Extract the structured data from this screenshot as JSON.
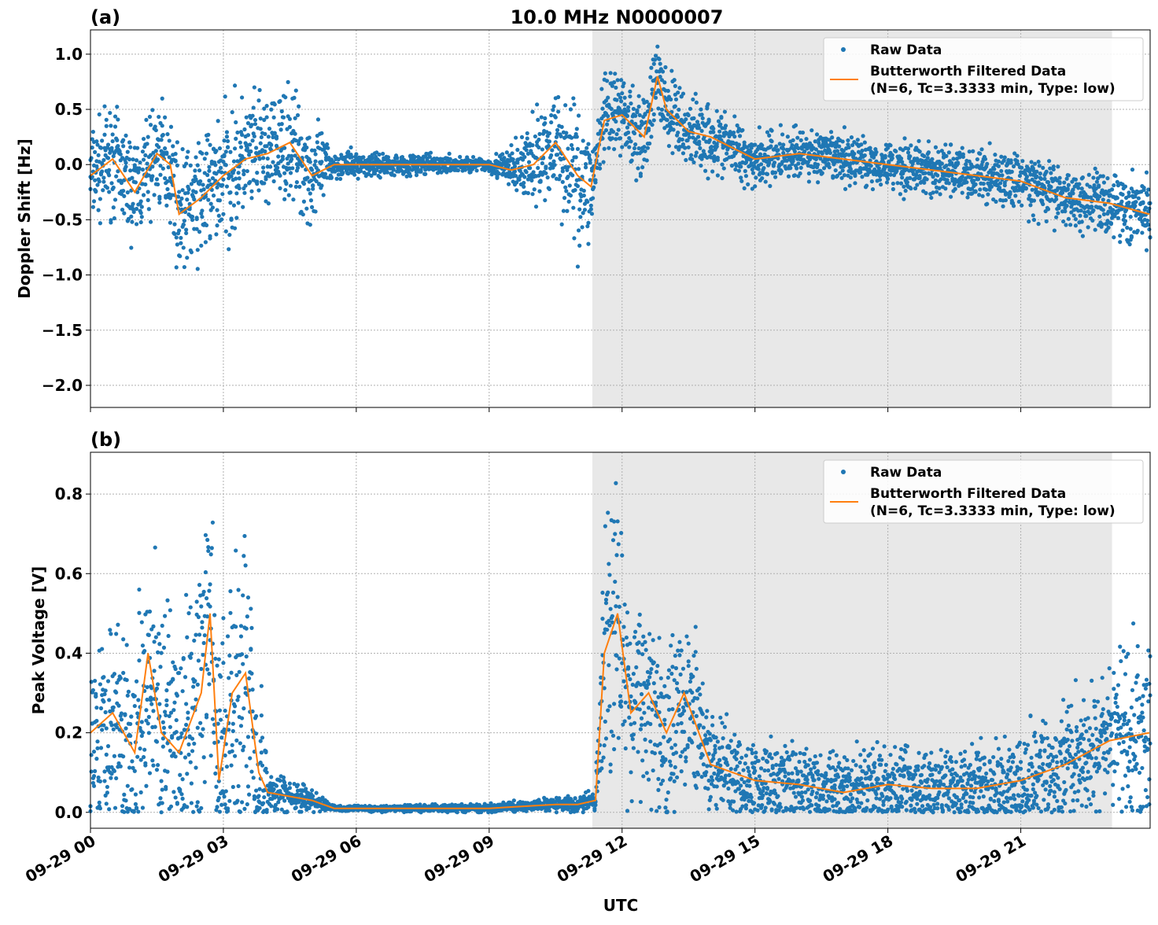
{
  "title": "10.0 MHz N0000007",
  "xlabel": "UTC",
  "x_tick_labels": [
    "09-29 00",
    "09-29 03",
    "09-29 06",
    "09-29 09",
    "09-29 12",
    "09-29 15",
    "09-29 18",
    "09-29 21"
  ],
  "colors": {
    "raw": "#1f77b4",
    "filtered": "#ff7f0e",
    "shade": "#e8e8e8"
  },
  "legend": {
    "raw": "Raw Data",
    "filtered_line1": "Butterworth Filtered Data",
    "filtered_line2": "(N=6, Tc=3.3333 min, Type: low)",
    "placement": "upper-right"
  },
  "chart_data": [
    {
      "type": "scatter+line",
      "panel_label": "(a)",
      "ylabel": "Doppler Shift [Hz]",
      "xlim_hours": [
        0,
        23.92
      ],
      "ylim": [
        -2.2,
        1.22
      ],
      "yticks": [
        1.0,
        0.5,
        0.0,
        -0.5,
        -1.0,
        -1.5,
        -2.0
      ],
      "ytick_labels": [
        "1.0",
        "0.5",
        "0.0",
        "−0.5",
        "−1.0",
        "−1.5",
        "−2.0"
      ],
      "grid": true,
      "shaded_span_hours": [
        11.33,
        23.06
      ],
      "filtered": [
        [
          0,
          -0.1
        ],
        [
          0.5,
          0.05
        ],
        [
          1,
          -0.25
        ],
        [
          1.5,
          0.1
        ],
        [
          1.8,
          0.0
        ],
        [
          2,
          -0.45
        ],
        [
          2.5,
          -0.3
        ],
        [
          3,
          -0.1
        ],
        [
          3.5,
          0.05
        ],
        [
          4,
          0.1
        ],
        [
          4.5,
          0.2
        ],
        [
          5,
          -0.1
        ],
        [
          5.5,
          0.0
        ],
        [
          6,
          0.0
        ],
        [
          7,
          0.0
        ],
        [
          8,
          0.0
        ],
        [
          9,
          0.0
        ],
        [
          9.5,
          -0.05
        ],
        [
          10,
          0.0
        ],
        [
          10.5,
          0.2
        ],
        [
          11,
          -0.1
        ],
        [
          11.3,
          -0.2
        ],
        [
          11.6,
          0.4
        ],
        [
          12,
          0.45
        ],
        [
          12.5,
          0.25
        ],
        [
          12.8,
          0.8
        ],
        [
          13,
          0.5
        ],
        [
          13.5,
          0.3
        ],
        [
          14,
          0.25
        ],
        [
          14.5,
          0.15
        ],
        [
          15,
          0.05
        ],
        [
          16,
          0.1
        ],
        [
          17,
          0.05
        ],
        [
          18,
          0.0
        ],
        [
          19,
          -0.05
        ],
        [
          20,
          -0.1
        ],
        [
          21,
          -0.15
        ],
        [
          22,
          -0.3
        ],
        [
          23,
          -0.35
        ],
        [
          23.9,
          -0.45
        ]
      ],
      "raw_spread": [
        [
          0,
          0.35
        ],
        [
          2,
          0.4
        ],
        [
          3,
          0.5
        ],
        [
          4,
          0.4
        ],
        [
          5,
          0.4
        ],
        [
          5.5,
          0.1
        ],
        [
          9,
          0.05
        ],
        [
          10,
          0.3
        ],
        [
          11,
          0.5
        ],
        [
          11.5,
          0.3
        ],
        [
          13,
          0.3
        ],
        [
          15,
          0.2
        ],
        [
          18,
          0.18
        ],
        [
          21,
          0.2
        ],
        [
          23.9,
          0.25
        ]
      ]
    },
    {
      "type": "scatter+line",
      "panel_label": "(b)",
      "ylabel": "Peak Voltage [V]",
      "xlim_hours": [
        0,
        23.92
      ],
      "ylim": [
        -0.04,
        0.905
      ],
      "yticks": [
        0.0,
        0.2,
        0.4,
        0.6,
        0.8
      ],
      "ytick_labels": [
        "0.0",
        "0.2",
        "0.4",
        "0.6",
        "0.8"
      ],
      "grid": true,
      "shaded_span_hours": [
        11.33,
        23.06
      ],
      "filtered": [
        [
          0,
          0.2
        ],
        [
          0.5,
          0.25
        ],
        [
          1,
          0.15
        ],
        [
          1.3,
          0.4
        ],
        [
          1.6,
          0.2
        ],
        [
          2,
          0.15
        ],
        [
          2.5,
          0.3
        ],
        [
          2.7,
          0.5
        ],
        [
          2.9,
          0.08
        ],
        [
          3.2,
          0.3
        ],
        [
          3.5,
          0.35
        ],
        [
          3.8,
          0.1
        ],
        [
          4,
          0.05
        ],
        [
          5,
          0.03
        ],
        [
          5.5,
          0.01
        ],
        [
          9,
          0.01
        ],
        [
          10.5,
          0.02
        ],
        [
          11,
          0.02
        ],
        [
          11.4,
          0.03
        ],
        [
          11.6,
          0.4
        ],
        [
          11.9,
          0.5
        ],
        [
          12.2,
          0.25
        ],
        [
          12.6,
          0.3
        ],
        [
          13,
          0.2
        ],
        [
          13.4,
          0.3
        ],
        [
          14,
          0.12
        ],
        [
          15,
          0.08
        ],
        [
          16,
          0.07
        ],
        [
          17,
          0.05
        ],
        [
          18,
          0.07
        ],
        [
          19,
          0.06
        ],
        [
          20,
          0.06
        ],
        [
          21,
          0.08
        ],
        [
          22,
          0.12
        ],
        [
          23,
          0.18
        ],
        [
          23.9,
          0.2
        ]
      ],
      "raw_spread": [
        [
          0,
          0.2
        ],
        [
          3,
          0.3
        ],
        [
          3.8,
          0.3
        ],
        [
          4,
          0.05
        ],
        [
          5.5,
          0.005
        ],
        [
          10,
          0.01
        ],
        [
          11.4,
          0.02
        ],
        [
          11.6,
          0.25
        ],
        [
          13,
          0.2
        ],
        [
          14,
          0.12
        ],
        [
          16,
          0.08
        ],
        [
          20,
          0.08
        ],
        [
          22,
          0.12
        ],
        [
          23.9,
          0.18
        ]
      ]
    }
  ]
}
